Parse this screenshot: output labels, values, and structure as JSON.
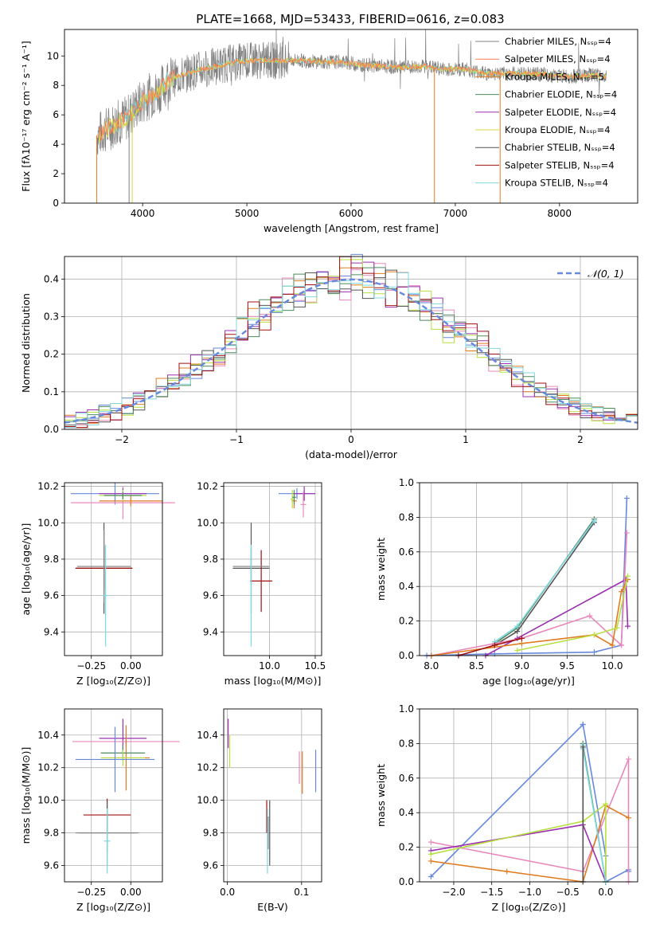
{
  "title": "PLATE=1668, MJD=53433, FIBERID=0616, z=0.083",
  "colors": {
    "chabrier_miles": "#808080",
    "salpeter_miles": "#ff7f50",
    "kroupa_miles": "#e07b20",
    "chabrier_elodie": "#4e8a5e",
    "salpeter_elodie": "#9b30b0",
    "kroupa_elodie": "#d8d840",
    "chabrier_stelib": "#555555",
    "salpeter_stelib": "#a01010",
    "kroupa_stelib": "#80d8e0",
    "blue": "#6688dd",
    "pink": "#e888bb",
    "lime": "#b8e040"
  },
  "chart_data": [
    {
      "id": "spectrum",
      "type": "line",
      "title": "PLATE=1668, MJD=53433, FIBERID=0616, z=0.083",
      "xlabel": "wavelength [Angstrom, rest frame]",
      "ylabel": "Flux [fλ10⁻¹⁷ erg cm⁻² s⁻¹ A⁻¹]",
      "xlim": [
        3250,
        8750
      ],
      "ylim": [
        0,
        11.8
      ],
      "xticks": [
        "4000",
        "5000",
        "6000",
        "7000",
        "8000"
      ],
      "yticks": [
        "0",
        "2",
        "4",
        "6",
        "8",
        "10"
      ],
      "legend_position": "right",
      "legend": [
        "Chabrier MILES, Nₛₛₚ=4",
        "Salpeter MILES, Nₛₛₚ=4",
        "Kroupa MILES, Nₛₛₚ=5",
        "Chabrier ELODIE, Nₛₛₚ=4",
        "Salpeter ELODIE, Nₛₛₚ=4",
        "Kroupa ELODIE, Nₛₛₚ=4",
        "Chabrier STELIB, Nₛₛₚ=4",
        "Salpeter STELIB, Nₛₛₚ=4",
        "Kroupa STELIB, Nₛₛₚ=4"
      ],
      "continuum": {
        "x": [
          3560,
          3650,
          3750,
          3850,
          3950,
          4050,
          4150,
          4250,
          4350,
          4500,
          4700,
          4900,
          5100,
          5300,
          5500,
          5700,
          5900,
          6100,
          6300,
          6500,
          6700,
          6900,
          7100,
          7300,
          7500,
          7700,
          7900,
          8100,
          8300,
          8450
        ],
        "y": [
          4.6,
          5.0,
          5.4,
          5.8,
          6.6,
          7.2,
          7.6,
          8.4,
          8.6,
          9.0,
          9.3,
          9.6,
          9.7,
          9.7,
          9.7,
          9.6,
          9.6,
          9.4,
          9.3,
          9.2,
          9.3,
          9.1,
          9.1,
          8.8,
          8.8,
          8.8,
          8.7,
          8.6,
          8.7,
          8.6
        ]
      }
    },
    {
      "id": "residuals",
      "type": "line",
      "xlabel": "(data-model)/error",
      "ylabel": "Normed distribution",
      "xlim": [
        -2.5,
        2.5
      ],
      "ylim": [
        0,
        0.46
      ],
      "xticks": [
        "−2",
        "−1",
        "0",
        "1",
        "2"
      ],
      "yticks": [
        "0.0",
        "0.1",
        "0.2",
        "0.3",
        "0.4"
      ],
      "legend": [
        "𝒩(0, 1)"
      ],
      "legend_position": "top-right",
      "bin_width": 0.1
    },
    {
      "id": "age-vs-Z",
      "type": "scatter",
      "xlabel": "Z [log₁₀(Z/Z⊙)]",
      "ylabel": "age  [log₁₀(age/yr)]",
      "xlim": [
        -0.42,
        0.2
      ],
      "ylim": [
        9.27,
        10.22
      ],
      "xticks": [
        "−0.25",
        "0.00"
      ],
      "yticks": [
        "9.4",
        "9.6",
        "9.8",
        "10.0",
        "10.2"
      ],
      "points": [
        {
          "color": "#6688dd",
          "x": -0.1,
          "xerr": 0.28,
          "y": 10.16,
          "yerr": 0.06
        },
        {
          "color": "#e888bb",
          "x": -0.05,
          "xerr": 0.33,
          "y": 10.11,
          "yerr": 0.09
        },
        {
          "color": "#e07b20",
          "x": 0.0,
          "xerr": 0.2,
          "y": 10.12,
          "yerr": 0.03
        },
        {
          "color": "#9b30b0",
          "x": -0.05,
          "xerr": 0.15,
          "y": 10.16,
          "yerr": 0.03
        },
        {
          "color": "#b8e040",
          "x": -0.05,
          "xerr": 0.15,
          "y": 10.15,
          "yerr": 0.03
        },
        {
          "color": "#4e8a5e",
          "x": -0.05,
          "xerr": 0.12,
          "y": 10.15,
          "yerr": 0.02
        },
        {
          "color": "#555555",
          "x": -0.17,
          "xerr": 0.18,
          "y": 9.75,
          "yerr": 0.25
        },
        {
          "color": "#a01010",
          "x": -0.17,
          "xerr": 0.18,
          "y": 9.75,
          "yerr": 0.12
        },
        {
          "color": "#808080",
          "x": -0.17,
          "xerr": 0.17,
          "y": 9.76,
          "yerr": 0.2
        },
        {
          "color": "#80d8e0",
          "x": -0.16,
          "xerr": 0.02,
          "y": 9.6,
          "yerr": 0.28
        }
      ]
    },
    {
      "id": "age-vs-mass",
      "type": "scatter",
      "xlabel": "mass [log₁₀(M/M⊙)]",
      "ylabel": "",
      "xlim": [
        9.5,
        10.57
      ],
      "ylim": [
        9.27,
        10.22
      ],
      "xticks": [
        "10.0",
        "10.5"
      ],
      "yticks": [
        "9.4",
        "9.6",
        "9.8",
        "10.0",
        "10.2"
      ],
      "points": [
        {
          "color": "#6688dd",
          "x": 10.3,
          "xerr": 0.2,
          "y": 10.16,
          "yerr": 0.03
        },
        {
          "color": "#9b30b0",
          "x": 10.38,
          "xerr": 0.12,
          "y": 10.16,
          "yerr": 0.04
        },
        {
          "color": "#e888bb",
          "x": 10.37,
          "xerr": 0.03,
          "y": 10.1,
          "yerr": 0.07
        },
        {
          "color": "#e07b20",
          "x": 10.27,
          "xerr": 0.03,
          "y": 10.12,
          "yerr": 0.04
        },
        {
          "color": "#b8e040",
          "x": 10.25,
          "xerr": 0.02,
          "y": 10.13,
          "yerr": 0.05
        },
        {
          "color": "#4e8a5e",
          "x": 10.27,
          "xerr": 0.02,
          "y": 10.14,
          "yerr": 0.04
        },
        {
          "color": "#555555",
          "x": 9.8,
          "xerr": 0.2,
          "y": 9.75,
          "yerr": 0.25
        },
        {
          "color": "#a01010",
          "x": 9.91,
          "xerr": 0.12,
          "y": 9.68,
          "yerr": 0.17
        },
        {
          "color": "#808080",
          "x": 9.8,
          "xerr": 0.2,
          "y": 9.76,
          "yerr": 0.1
        },
        {
          "color": "#80d8e0",
          "x": 9.8,
          "xerr": 0.01,
          "y": 9.6,
          "yerr": 0.28
        }
      ]
    },
    {
      "id": "weight-vs-age",
      "type": "line",
      "xlabel": "age  [log₁₀(age/yr)]",
      "ylabel": "mass weight",
      "xlim": [
        7.87,
        10.28
      ],
      "ylim": [
        0,
        1.0
      ],
      "xticks": [
        "8.0",
        "8.5",
        "9.0",
        "9.5",
        "10.0"
      ],
      "yticks": [
        "0.0",
        "0.2",
        "0.4",
        "0.6",
        "0.8",
        "1.0"
      ],
      "series": [
        {
          "color": "#6688dd",
          "x": [
            7.95,
            8.7,
            9.8,
            10.1,
            10.16
          ],
          "y": [
            0.0,
            0.01,
            0.02,
            0.06,
            0.91
          ]
        },
        {
          "color": "#4e8a5e",
          "x": [
            8.7,
            8.95,
            9.8
          ],
          "y": [
            0.07,
            0.16,
            0.79
          ]
        },
        {
          "color": "#555555",
          "x": [
            8.7,
            8.95,
            9.8
          ],
          "y": [
            0.06,
            0.14,
            0.77
          ]
        },
        {
          "color": "#80d8e0",
          "x": [
            8.7,
            8.95,
            9.8
          ],
          "y": [
            0.08,
            0.17,
            0.78
          ]
        },
        {
          "color": "#9b30b0",
          "x": [
            8.6,
            8.95,
            10.15,
            10.17
          ],
          "y": [
            0.0,
            0.1,
            0.44,
            0.17
          ]
        },
        {
          "color": "#e888bb",
          "x": [
            8.0,
            9.0,
            9.75,
            10.1,
            10.16
          ],
          "y": [
            0.0,
            0.1,
            0.23,
            0.06,
            0.71
          ]
        },
        {
          "color": "#e07b20",
          "x": [
            8.0,
            9.0,
            9.8,
            10.0,
            10.1,
            10.17
          ],
          "y": [
            0.0,
            0.07,
            0.12,
            0.06,
            0.37,
            0.44
          ]
        },
        {
          "color": "#b8e040",
          "x": [
            8.95,
            9.8,
            10.05,
            10.17
          ],
          "y": [
            0.03,
            0.12,
            0.16,
            0.46
          ]
        },
        {
          "color": "#a01010",
          "x": [
            8.3,
            8.7,
            9.0
          ],
          "y": [
            0.0,
            0.06,
            0.1
          ]
        }
      ]
    },
    {
      "id": "mass-vs-Z",
      "type": "scatter",
      "xlabel": "Z [log₁₀(Z/Z⊙)]",
      "ylabel": "mass [log₁₀(M/M⊙)]",
      "xlim": [
        -0.42,
        0.2
      ],
      "ylim": [
        9.5,
        10.56
      ],
      "xticks": [
        "−0.25",
        "0.00"
      ],
      "yticks": [
        "9.6",
        "9.8",
        "10.0",
        "10.2",
        "10.4"
      ],
      "points": [
        {
          "color": "#9b30b0",
          "x": -0.05,
          "xerr": 0.15,
          "y": 10.38,
          "yerr": 0.12
        },
        {
          "color": "#e888bb",
          "x": -0.03,
          "xerr": 0.34,
          "y": 10.36,
          "yerr": 0.03
        },
        {
          "color": "#e07b20",
          "x": -0.03,
          "xerr": 0.15,
          "y": 10.26,
          "yerr": 0.2
        },
        {
          "color": "#4e8a5e",
          "x": -0.05,
          "xerr": 0.14,
          "y": 10.29,
          "yerr": 0.05
        },
        {
          "color": "#b8e040",
          "x": -0.05,
          "xerr": 0.14,
          "y": 10.26,
          "yerr": 0.05
        },
        {
          "color": "#6688dd",
          "x": -0.1,
          "xerr": 0.25,
          "y": 10.25,
          "yerr": 0.2
        },
        {
          "color": "#a01010",
          "x": -0.15,
          "xerr": 0.15,
          "y": 9.91,
          "yerr": 0.1
        },
        {
          "color": "#555555",
          "x": -0.15,
          "xerr": 0.18,
          "y": 9.8,
          "yerr": 0.2
        },
        {
          "color": "#808080",
          "x": -0.15,
          "xerr": 0.2,
          "y": 9.8,
          "yerr": 0.12
        },
        {
          "color": "#80d8e0",
          "x": -0.15,
          "xerr": 0.02,
          "y": 9.75,
          "yerr": 0.2
        }
      ]
    },
    {
      "id": "mass-vs-ebv",
      "type": "scatter",
      "xlabel": "E(B-V)",
      "ylabel": "",
      "xlim": [
        -0.005,
        0.127
      ],
      "ylim": [
        9.5,
        10.56
      ],
      "xticks": [
        "0.0",
        "0.1"
      ],
      "yticks": [
        "9.6",
        "9.8",
        "10.0",
        "10.2",
        "10.4"
      ],
      "points": [
        {
          "color": "#9b30b0",
          "x": 0.001,
          "xerr": 0,
          "y": 10.41,
          "yerr": 0.09
        },
        {
          "color": "#b8e040",
          "x": 0.003,
          "xerr": 0,
          "y": 10.3,
          "yerr": 0.1
        },
        {
          "color": "#e888bb",
          "x": 0.097,
          "xerr": 0,
          "y": 10.2,
          "yerr": 0.1
        },
        {
          "color": "#e07b20",
          "x": 0.101,
          "xerr": 0,
          "y": 10.17,
          "yerr": 0.13
        },
        {
          "color": "#6688dd",
          "x": 0.119,
          "xerr": 0,
          "y": 10.18,
          "yerr": 0.13
        },
        {
          "color": "#a01010",
          "x": 0.053,
          "xerr": 0,
          "y": 9.9,
          "yerr": 0.1
        },
        {
          "color": "#555555",
          "x": 0.057,
          "xerr": 0,
          "y": 9.8,
          "yerr": 0.2
        },
        {
          "color": "#808080",
          "x": 0.055,
          "xerr": 0,
          "y": 9.8,
          "yerr": 0.1
        },
        {
          "color": "#80d8e0",
          "x": 0.054,
          "xerr": 0,
          "y": 9.75,
          "yerr": 0.2
        }
      ]
    },
    {
      "id": "weight-vs-Z",
      "type": "line",
      "xlabel": "Z [log₁₀(Z/Z⊙)]",
      "ylabel": "mass weight",
      "xlim": [
        -2.45,
        0.42
      ],
      "ylim": [
        0,
        1.0
      ],
      "xticks": [
        "−2.0",
        "−1.5",
        "−1.0",
        "−0.5",
        "0.0"
      ],
      "yticks": [
        "0.0",
        "0.2",
        "0.4",
        "0.6",
        "0.8",
        "1.0"
      ],
      "series": [
        {
          "color": "#6688dd",
          "x": [
            -2.3,
            -0.3,
            -0.3,
            0.0,
            0.0,
            0.3,
            0.3
          ],
          "y": [
            0.03,
            0.91,
            0.91,
            0.15,
            0.0,
            0.07,
            0.06
          ]
        },
        {
          "color": "#e888bb",
          "x": [
            -2.3,
            -0.3,
            0.3,
            0.3
          ],
          "y": [
            0.23,
            0.06,
            0.71,
            0.0
          ]
        },
        {
          "color": "#e07b20",
          "x": [
            -2.3,
            -1.3,
            -0.3,
            0.0,
            0.3
          ],
          "y": [
            0.12,
            0.06,
            0.0,
            0.44,
            0.37
          ]
        },
        {
          "color": "#9b30b0",
          "x": [
            -2.3,
            -0.3,
            0.0
          ],
          "y": [
            0.18,
            0.33,
            0.0
          ]
        },
        {
          "color": "#b8e040",
          "x": [
            -2.3,
            -0.3,
            0.0,
            0.0
          ],
          "y": [
            0.16,
            0.35,
            0.45,
            0.0
          ]
        },
        {
          "color": "#4e8a5e",
          "x": [
            -0.3,
            -0.3,
            0.0
          ],
          "y": [
            0.8,
            0.79,
            0.0
          ]
        },
        {
          "color": "#80d8e0",
          "x": [
            -0.3,
            -0.3,
            0.0
          ],
          "y": [
            0.79,
            0.77,
            0.0
          ]
        },
        {
          "color": "#555555",
          "x": [
            -0.3,
            -0.3
          ],
          "y": [
            0.78,
            0.0
          ]
        }
      ]
    }
  ]
}
